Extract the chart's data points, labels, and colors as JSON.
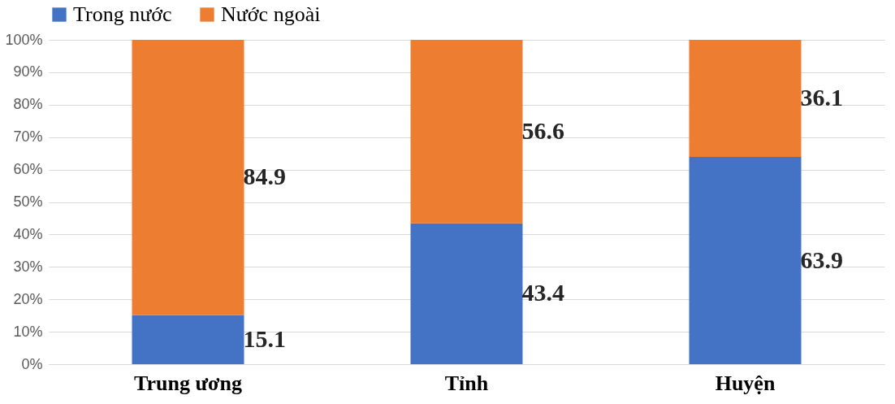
{
  "chart_data": {
    "type": "bar",
    "stacked": true,
    "categories": [
      "Trung ương",
      "Tỉnh",
      "Huyện"
    ],
    "series": [
      {
        "name": "Trong nước",
        "color": "#4472c4",
        "values": [
          15.1,
          43.4,
          63.9
        ]
      },
      {
        "name": "Nước ngoài",
        "color": "#ed7d31",
        "values": [
          84.9,
          56.6,
          36.1
        ]
      }
    ],
    "ylim": [
      0,
      100
    ],
    "yticks": [
      {
        "value": 0,
        "label": "0%"
      },
      {
        "value": 10,
        "label": "10%"
      },
      {
        "value": 20,
        "label": "20%"
      },
      {
        "value": 30,
        "label": "30%"
      },
      {
        "value": 40,
        "label": "40%"
      },
      {
        "value": 50,
        "label": "50%"
      },
      {
        "value": 60,
        "label": "60%"
      },
      {
        "value": 70,
        "label": "70%"
      },
      {
        "value": 80,
        "label": "80%"
      },
      {
        "value": 90,
        "label": "90%"
      },
      {
        "value": 100,
        "label": "100%"
      }
    ],
    "grid": "y",
    "legend": "top",
    "data_labels": true
  }
}
